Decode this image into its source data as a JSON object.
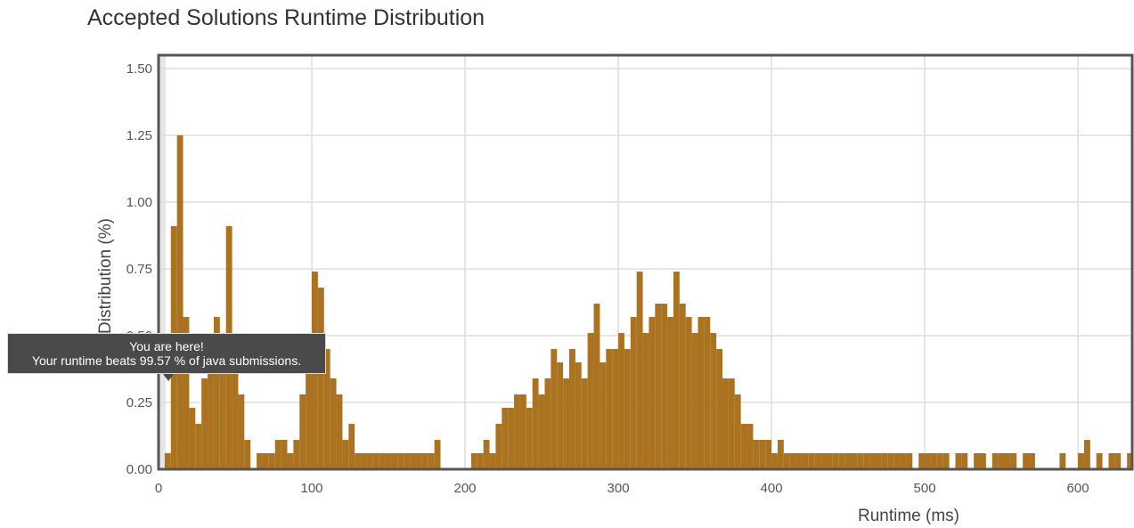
{
  "chart_data": {
    "type": "histogram",
    "title": "Accepted Solutions Runtime Distribution",
    "x_label": "Runtime (ms)",
    "y_label": "Distribution (%)",
    "color": "#ab7320",
    "grid": true,
    "xlim": [
      0,
      636
    ],
    "ylim": [
      0,
      1.55
    ],
    "xticks": [
      0,
      100,
      200,
      300,
      400,
      500,
      600
    ],
    "yticks": [
      {
        "value": 0,
        "label": "0.00"
      },
      {
        "value": 0.25,
        "label": "0.25"
      },
      {
        "value": 0.5,
        "label": "0.50"
      },
      {
        "value": 0.75,
        "label": "0.75"
      },
      {
        "value": 1,
        "label": "1.00"
      },
      {
        "value": 1.25,
        "label": "1.25"
      },
      {
        "value": 1.5,
        "label": "1.50"
      }
    ],
    "bins": [
      0,
      4,
      8,
      12,
      16,
      20,
      24,
      28,
      32,
      36,
      40,
      44,
      48,
      52,
      56,
      60,
      64,
      68,
      72,
      76,
      80,
      84,
      88,
      92,
      96,
      100,
      104,
      108,
      112,
      116,
      120,
      124,
      128,
      132,
      136,
      140,
      144,
      148,
      152,
      156,
      160,
      164,
      168,
      172,
      176,
      180,
      184,
      188,
      192,
      196,
      200,
      204,
      208,
      212,
      216,
      220,
      224,
      228,
      232,
      236,
      240,
      244,
      248,
      252,
      256,
      260,
      264,
      268,
      272,
      276,
      280,
      284,
      288,
      292,
      296,
      300,
      304,
      308,
      312,
      316,
      320,
      324,
      328,
      332,
      336,
      340,
      344,
      348,
      352,
      356,
      360,
      364,
      368,
      372,
      376,
      380,
      384,
      388,
      392,
      396,
      400,
      404,
      408,
      412,
      416,
      420,
      424,
      428,
      432,
      436,
      440,
      444,
      448,
      452,
      456,
      460,
      464,
      468,
      472,
      476,
      480,
      484,
      488,
      492,
      496,
      500,
      504,
      508,
      512,
      516,
      520,
      524,
      528,
      532,
      536,
      540,
      544,
      548,
      552,
      556,
      560,
      564,
      568,
      572,
      576,
      580,
      584,
      588,
      592,
      596,
      600,
      604,
      608,
      612,
      616,
      620,
      624,
      628,
      632,
      636
    ],
    "values": [
      0,
      0.06,
      0.91,
      1.25,
      0.57,
      0.23,
      0.17,
      0.34,
      0.45,
      0.57,
      0.51,
      0.91,
      0.51,
      0.28,
      0.11,
      0,
      0.06,
      0.06,
      0.06,
      0.11,
      0.11,
      0.06,
      0.11,
      0.28,
      0.45,
      0.74,
      0.68,
      0.45,
      0.34,
      0.28,
      0.11,
      0.17,
      0.06,
      0.06,
      0.06,
      0.06,
      0.06,
      0.06,
      0.06,
      0.06,
      0.06,
      0.06,
      0.06,
      0.06,
      0.06,
      0.11,
      0,
      0,
      0,
      0,
      0,
      0.06,
      0.06,
      0.11,
      0.06,
      0.17,
      0.23,
      0.23,
      0.28,
      0.28,
      0.23,
      0.34,
      0.28,
      0.34,
      0.45,
      0.4,
      0.34,
      0.45,
      0.4,
      0.34,
      0.51,
      0.62,
      0.4,
      0.45,
      0.45,
      0.51,
      0.45,
      0.57,
      0.74,
      0.51,
      0.57,
      0.62,
      0.62,
      0.57,
      0.74,
      0.62,
      0.57,
      0.51,
      0.57,
      0.57,
      0.51,
      0.45,
      0.34,
      0.34,
      0.28,
      0.17,
      0.17,
      0.11,
      0.11,
      0.11,
      0.06,
      0.11,
      0.06,
      0.06,
      0.06,
      0.06,
      0.06,
      0.06,
      0.06,
      0.06,
      0.06,
      0.06,
      0.06,
      0.06,
      0.06,
      0.06,
      0.06,
      0.06,
      0.06,
      0.06,
      0.06,
      0.06,
      0.06,
      0,
      0.06,
      0.06,
      0.06,
      0.06,
      0.06,
      0,
      0.06,
      0.06,
      0,
      0.06,
      0.06,
      0,
      0.06,
      0.06,
      0.06,
      0.06,
      0,
      0.06,
      0.06,
      0,
      0,
      0,
      0,
      0.06,
      0,
      0,
      0.06,
      0.11,
      0,
      0.06,
      0,
      0.06,
      0.06,
      0,
      0.06
    ]
  },
  "tooltip": {
    "title": "You are here!",
    "text": "Your runtime beats 99.57 % of java submissions."
  }
}
